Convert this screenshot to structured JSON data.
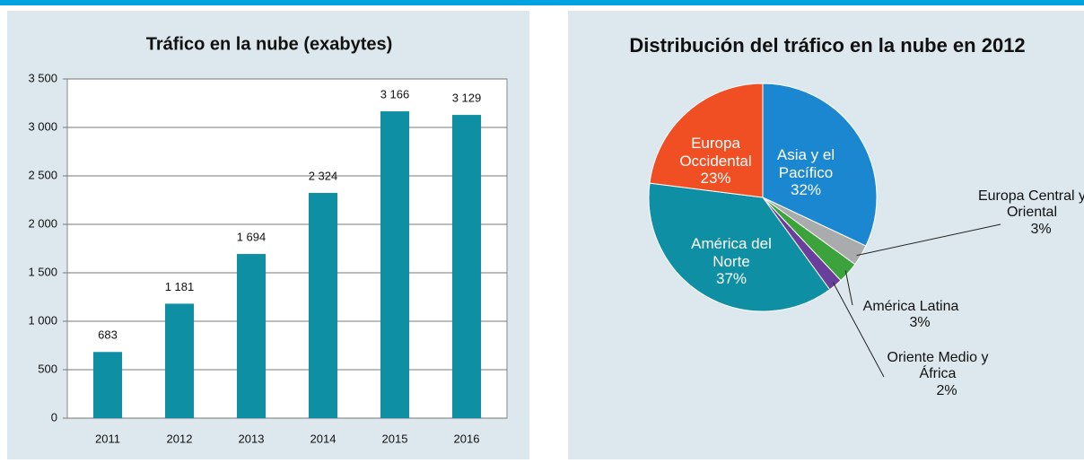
{
  "chart_data": [
    {
      "type": "bar",
      "title": "Tráfico en la nube (exabytes)",
      "categories": [
        "2011",
        "2012",
        "2013",
        "2014",
        "2015",
        "2016"
      ],
      "values": [
        683,
        1181,
        1694,
        2324,
        3166,
        3129
      ],
      "value_labels": [
        "683",
        "1 181",
        "1 694",
        "2 324",
        "3 166",
        "3 129"
      ],
      "color": "#0f8fa3",
      "ylim": [
        0,
        3500
      ],
      "yticks": [
        0,
        500,
        {
          "value": 1000,
          "label": "1 000"
        },
        {
          "value": 1500,
          "label": "1 500"
        },
        {
          "value": 2000,
          "label": "2 000"
        },
        {
          "value": 2500,
          "label": "2 500"
        },
        {
          "value": 3000,
          "label": "3 000"
        },
        {
          "value": 3500,
          "label": "3 500"
        }
      ],
      "grid": true
    },
    {
      "type": "pie",
      "title": "Distribución del tráfico en la nube en 2012",
      "categories": [
        "Asia y el Pacífico",
        "Europa Central y Oriental",
        "América Latina",
        "Oriente Medio y África",
        "América del Norte",
        "Europa Occidental"
      ],
      "values": [
        32,
        3,
        3,
        2,
        37,
        23
      ],
      "value_labels": [
        "32%",
        "3%",
        "3%",
        "2%",
        "37%",
        "23%"
      ],
      "colors": [
        "#1b87d0",
        "#a9abad",
        "#3ca33c",
        "#6a3f9b",
        "#0f8fa3",
        "#f04e23"
      ]
    }
  ]
}
